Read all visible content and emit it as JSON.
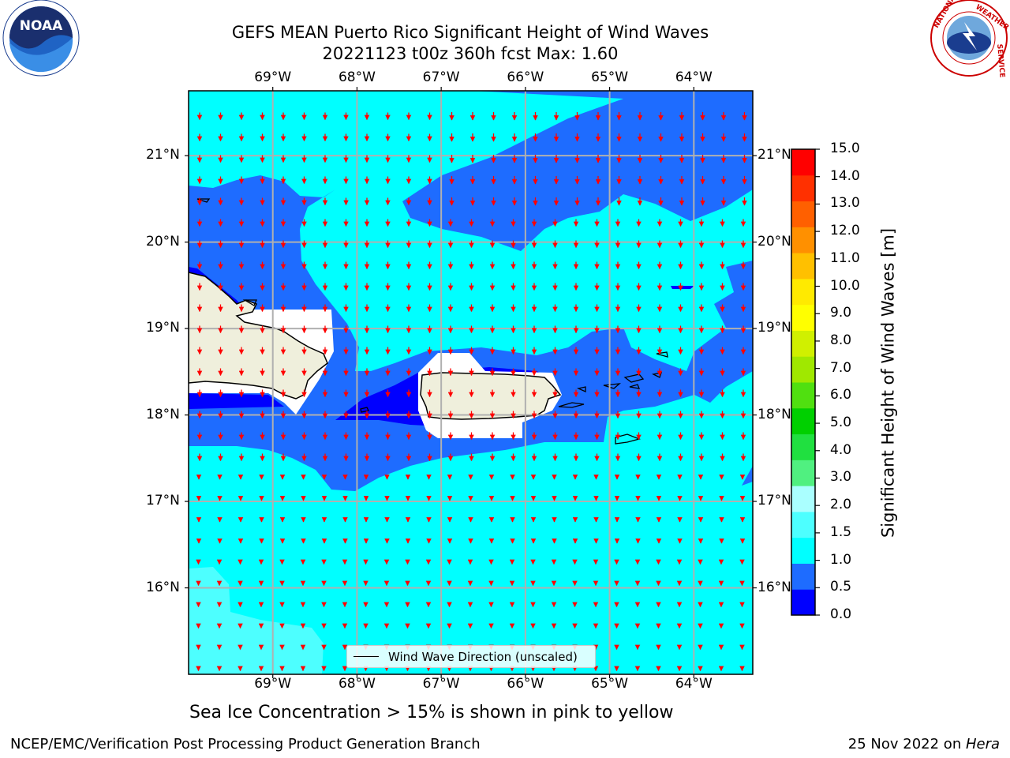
{
  "title_line1": "GEFS MEAN Puerto Rico Significant Height of Wind Waves",
  "title_line2": "20221123 t00z 360h fcst   Max: 1.60",
  "subtitle": "Sea Ice Concentration > 15% is shown in pink to yellow",
  "footer_left": "NCEP/EMC/Verification Post Processing Product Generation Branch",
  "footer_right_prefix": "25 Nov 2022 on ",
  "footer_right_host": "Hera",
  "legend_label": "Wind Wave Direction (unscaled)",
  "logos": {
    "left": "NOAA",
    "right": "NATIONAL WEATHER SERVICE"
  },
  "map": {
    "lon_labels": [
      "69°W",
      "68°W",
      "67°W",
      "66°W",
      "65°W",
      "64°W"
    ],
    "lat_labels": [
      "21°N",
      "20°N",
      "19°N",
      "18°N",
      "17°N",
      "16°N"
    ],
    "lon_range": [
      -70.0,
      -63.3
    ],
    "lat_range": [
      15.0,
      21.75
    ]
  },
  "colorbar": {
    "label": "Significant Height of Wind Waves [m]",
    "ticks": [
      "15.0",
      "14.0",
      "13.0",
      "12.0",
      "11.0",
      "10.0",
      "9.0",
      "8.0",
      "7.0",
      "6.0",
      "5.0",
      "4.0",
      "3.0",
      "2.0",
      "1.5",
      "1.0",
      "0.5",
      "0.0"
    ],
    "colors": [
      "#0000ff",
      "#1e6cff",
      "#00ffff",
      "#4dffff",
      "#aaffff",
      "#50f080",
      "#20e040",
      "#00d000",
      "#50e010",
      "#a0e800",
      "#d0f000",
      "#ffff00",
      "#ffea00",
      "#ffc000",
      "#ff9000",
      "#ff6000",
      "#ff3000",
      "#ff0000"
    ]
  }
}
